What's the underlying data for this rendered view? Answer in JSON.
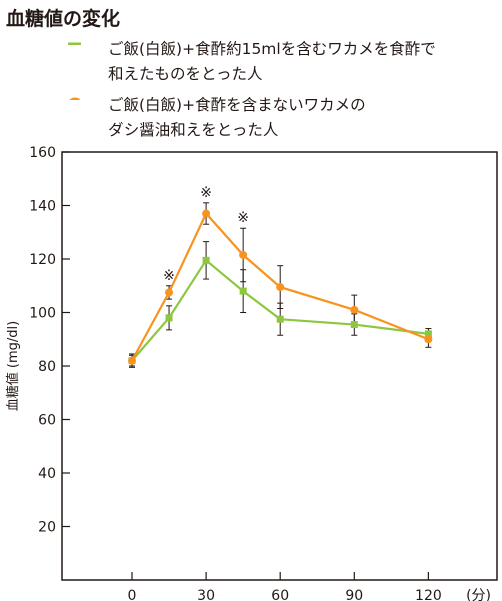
{
  "title": "血糖値の変化",
  "legend": [
    {
      "label": "ご飯(白飯)+食酢約15mlを含むワカメを食酢で\n和えたものをとった人",
      "color": "#8dc63f",
      "marker": "square"
    },
    {
      "label": "ご飯(白飯)+食酢を含まないワカメの\nダシ醤油和えをとった人",
      "color": "#f7931e",
      "marker": "circle"
    }
  ],
  "chart_data": {
    "type": "line",
    "title": "血糖値の変化",
    "ylabel": "血糖値 (mg/dl)",
    "xunit": "(分)",
    "ylim": [
      0,
      160
    ],
    "yticks": [
      20,
      40,
      60,
      80,
      100,
      120,
      140,
      160
    ],
    "xticks": [
      0,
      30,
      60,
      90,
      120
    ],
    "grid": false,
    "legend_position": "top",
    "series": [
      {
        "name": "ご飯(白飯)+食酢約15mlを含むワカメを食酢で和えたものをとった人",
        "color": "#8dc63f",
        "marker": "square",
        "x": [
          0,
          15,
          30,
          45,
          60,
          90,
          120
        ],
        "y": [
          82,
          98,
          119.5,
          108,
          97.5,
          95.5,
          92
        ],
        "err": [
          2.5,
          4.5,
          7,
          8,
          6,
          4,
          2
        ]
      },
      {
        "name": "ご飯(白飯)+食酢を含まないワカメのダシ醤油和えをとった人",
        "color": "#f7931e",
        "marker": "circle",
        "x": [
          0,
          15,
          30,
          45,
          60,
          90,
          120
        ],
        "y": [
          82,
          107.5,
          137,
          121.5,
          109.5,
          101,
          90
        ],
        "err": [
          2,
          2.5,
          4,
          10,
          8,
          5.5,
          3
        ]
      }
    ],
    "annotations": [
      {
        "x": 15,
        "text": "※"
      },
      {
        "x": 30,
        "text": "※"
      },
      {
        "x": 45,
        "text": "※"
      }
    ]
  }
}
